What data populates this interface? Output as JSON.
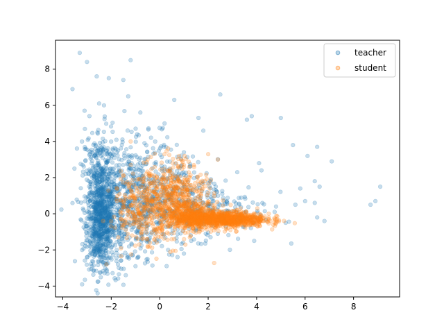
{
  "chart_data": {
    "type": "scatter",
    "title": "",
    "xlabel": "",
    "ylabel": "",
    "xlim": [
      -4.3,
      9.9
    ],
    "ylim": [
      -4.6,
      9.6
    ],
    "xticks": [
      -4,
      -2,
      0,
      2,
      4,
      6,
      8
    ],
    "yticks": [
      -4,
      -2,
      0,
      2,
      4,
      6,
      8
    ],
    "grid": false,
    "legend_position": "top-right",
    "series": [
      {
        "name": "teacher",
        "color": "#1f77b4",
        "alpha": 0.25,
        "description": "dense cluster centred near x=-2.4, y from -3 to 4, spreading right with sparse points",
        "points": [
          [
            -3.3,
            8.9
          ],
          [
            -3.0,
            8.4
          ],
          [
            -1.2,
            8.5
          ],
          [
            -2.6,
            7.6
          ],
          [
            -2.1,
            7.5
          ],
          [
            -1.5,
            7.4
          ],
          [
            -3.6,
            6.9
          ],
          [
            -2.5,
            6.1
          ],
          [
            -2.3,
            6.0
          ],
          [
            -1.3,
            6.5
          ],
          [
            -0.8,
            5.6
          ],
          [
            0.6,
            6.3
          ],
          [
            2.5,
            6.6
          ],
          [
            3.8,
            5.4
          ],
          [
            3.6,
            5.2
          ],
          [
            5.0,
            5.3
          ],
          [
            -3.1,
            5.7
          ],
          [
            -2.9,
            5.4
          ],
          [
            0.2,
            5.0
          ],
          [
            1.6,
            5.3
          ],
          [
            1.8,
            4.6
          ],
          [
            5.5,
            3.8
          ],
          [
            6.1,
            3.2
          ],
          [
            6.5,
            3.7
          ],
          [
            7.1,
            2.9
          ],
          [
            4.1,
            2.8
          ],
          [
            4.2,
            2.4
          ],
          [
            3.2,
            2.3
          ],
          [
            6.4,
            1.8
          ],
          [
            6.6,
            1.5
          ],
          [
            5.8,
            1.4
          ],
          [
            9.1,
            1.5
          ],
          [
            8.9,
            0.7
          ],
          [
            8.7,
            0.5
          ],
          [
            6.0,
            0.7
          ],
          [
            5.6,
            0.5
          ],
          [
            6.4,
            0.6
          ],
          [
            6.5,
            -0.2
          ],
          [
            6.8,
            -0.4
          ],
          [
            5.2,
            -0.5
          ],
          [
            4.8,
            0.4
          ],
          [
            3.9,
            -1.5
          ],
          [
            1.9,
            -1.1
          ],
          [
            2.1,
            -1.3
          ],
          [
            1.3,
            -1.5
          ],
          [
            1.0,
            -2.2
          ],
          [
            -0.9,
            -2.4
          ],
          [
            -0.5,
            -2.5
          ],
          [
            -1.0,
            -2.9
          ],
          [
            -1.4,
            -3.4
          ],
          [
            -3.2,
            -3.9
          ],
          [
            -2.8,
            -2.9
          ],
          [
            -3.0,
            -2.4
          ],
          [
            -3.2,
            -2.0
          ],
          [
            -1.6,
            -2.6
          ],
          [
            -1.3,
            -2.4
          ]
        ],
        "clusters": [
          {
            "cx": -2.45,
            "cy": -0.6,
            "sx": 0.28,
            "sy": 1.2,
            "n": 600
          },
          {
            "cx": -2.5,
            "cy": 2.2,
            "sx": 0.35,
            "sy": 1.3,
            "n": 260
          },
          {
            "cx": -1.8,
            "cy": 0.0,
            "sx": 0.6,
            "sy": 1.5,
            "n": 350
          },
          {
            "cx": -0.6,
            "cy": 0.6,
            "sx": 0.8,
            "sy": 1.4,
            "n": 320
          },
          {
            "cx": 0.8,
            "cy": 0.6,
            "sx": 0.8,
            "sy": 1.2,
            "n": 200
          },
          {
            "cx": 2.6,
            "cy": 0.3,
            "sx": 1.0,
            "sy": 0.9,
            "n": 140
          },
          {
            "cx": -1.0,
            "cy": 3.2,
            "sx": 0.9,
            "sy": 1.0,
            "n": 90
          }
        ]
      },
      {
        "name": "student",
        "color": "#ff7f0e",
        "alpha": 0.25,
        "description": "dense horizontal band from x=0.5 to 4.5 near y=-0.3, plus diffuse cloud from x=-1 to 2, y from -1.5 to 3",
        "points": [
          [
            -1.2,
            4.0
          ],
          [
            0.8,
            3.2
          ],
          [
            2.0,
            3.3
          ],
          [
            2.4,
            3.0
          ],
          [
            1.0,
            2.7
          ],
          [
            0.2,
            3.3
          ],
          [
            -0.5,
            3.0
          ],
          [
            4.8,
            -0.5
          ],
          [
            4.5,
            0.0
          ],
          [
            -2.2,
            -2.8
          ],
          [
            -0.4,
            -1.6
          ],
          [
            0.6,
            -1.4
          ]
        ],
        "clusters": [
          {
            "cx": 2.6,
            "cy": -0.3,
            "sx": 0.9,
            "sy": 0.22,
            "n": 900
          },
          {
            "cx": 1.2,
            "cy": -0.1,
            "sx": 0.6,
            "sy": 0.4,
            "n": 350
          },
          {
            "cx": 0.2,
            "cy": 0.6,
            "sx": 0.8,
            "sy": 1.1,
            "n": 380
          },
          {
            "cx": -0.8,
            "cy": 0.2,
            "sx": 0.6,
            "sy": 0.9,
            "n": 180
          },
          {
            "cx": 0.9,
            "cy": 1.6,
            "sx": 0.6,
            "sy": 0.7,
            "n": 140
          }
        ]
      }
    ]
  }
}
